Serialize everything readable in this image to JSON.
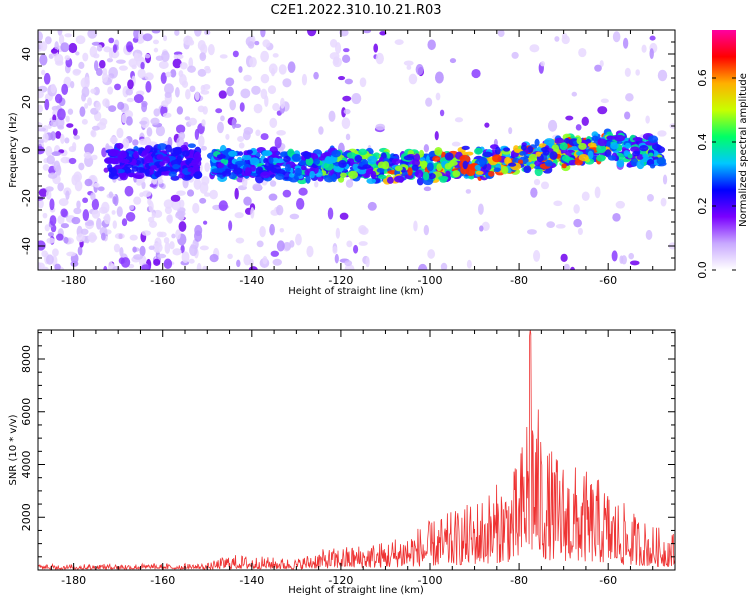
{
  "figure": {
    "title": "C2E1.2022.310.10.21.R03"
  },
  "chart_data": [
    {
      "type": "heatmap",
      "xlabel": "Height of straight line (km)",
      "ylabel": "Frequency (Hz)",
      "xlim": [
        -188,
        -45
      ],
      "ylim": [
        -50,
        50
      ],
      "xticks": [
        -180,
        -160,
        -140,
        -120,
        -100,
        -80,
        -60
      ],
      "yticks": [
        -40,
        -20,
        0,
        20,
        40
      ],
      "colorbar": {
        "label": "Normalized spectral amplitude",
        "range": [
          0.0,
          0.75
        ],
        "ticks": [
          0.0,
          0.2,
          0.4,
          0.6
        ],
        "tick_labels": [
          "0.0",
          "0.2",
          "0.4",
          "0.6"
        ],
        "colors": [
          "#ffffff",
          "#c8a8ff",
          "#7a00ff",
          "#0000ff",
          "#00c8ff",
          "#00ff66",
          "#c8ff00",
          "#ffb000",
          "#ff0000",
          "#ff00a0"
        ]
      },
      "signal_band": {
        "description_points": [
          {
            "x": -172,
            "y": -5
          },
          {
            "x": -150,
            "y": -5
          },
          {
            "x": -140,
            "y": -6
          },
          {
            "x": -120,
            "y": -6
          },
          {
            "x": -100,
            "y": -7
          },
          {
            "x": -80,
            "y": -4
          },
          {
            "x": -60,
            "y": 2
          },
          {
            "x": -48,
            "y": -2
          }
        ]
      }
    },
    {
      "type": "line",
      "xlabel": "Height of straight line (km)",
      "ylabel": "SNR (10 * v/v)",
      "xlim": [
        -188,
        -45
      ],
      "ylim": [
        0,
        9100
      ],
      "xticks": [
        -180,
        -160,
        -140,
        -120,
        -100,
        -80,
        -60
      ],
      "yticks": [
        2000,
        4000,
        6000,
        8000
      ],
      "series": [
        {
          "color": "#ee3333",
          "envelope": [
            {
              "x": -188,
              "y": 250
            },
            {
              "x": -150,
              "y": 300
            },
            {
              "x": -145,
              "y": 700
            },
            {
              "x": -130,
              "y": 500
            },
            {
              "x": -125,
              "y": 900
            },
            {
              "x": -110,
              "y": 1300
            },
            {
              "x": -100,
              "y": 2200
            },
            {
              "x": -92,
              "y": 2900
            },
            {
              "x": -86,
              "y": 3700
            },
            {
              "x": -80,
              "y": 4800
            },
            {
              "x": -77.5,
              "y": 9100
            },
            {
              "x": -74,
              "y": 5600
            },
            {
              "x": -70,
              "y": 5000
            },
            {
              "x": -62,
              "y": 4100
            },
            {
              "x": -55,
              "y": 2700
            },
            {
              "x": -50,
              "y": 2000
            },
            {
              "x": -45,
              "y": 1700
            }
          ]
        }
      ]
    }
  ]
}
